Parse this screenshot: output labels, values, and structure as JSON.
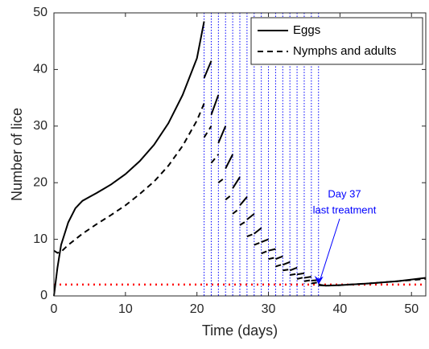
{
  "chart_data": {
    "type": "line",
    "xlabel": "Time (days)",
    "ylabel": "Number of lice",
    "xlim": [
      0,
      52
    ],
    "ylim": [
      0,
      50
    ],
    "xticks": [
      0,
      10,
      20,
      30,
      40,
      50
    ],
    "yticks": [
      0,
      10,
      20,
      30,
      40,
      50
    ],
    "legend": "upper right",
    "series": [
      {
        "name": "Eggs",
        "color": "#000000",
        "dash": "solid",
        "x": [
          0,
          0.5,
          1,
          2,
          3,
          4,
          5,
          6,
          8,
          10,
          12,
          14,
          16,
          18,
          20,
          21,
          null,
          21,
          22,
          null,
          22,
          23,
          null,
          23,
          24,
          null,
          24,
          25,
          null,
          25,
          26,
          null,
          26,
          27,
          null,
          27,
          28,
          null,
          28,
          29,
          null,
          29,
          30,
          null,
          30,
          31,
          null,
          31,
          32,
          null,
          32,
          33,
          null,
          33,
          34,
          null,
          34,
          35,
          null,
          35,
          36,
          null,
          36,
          37,
          null,
          37,
          38,
          40,
          44,
          48,
          52
        ],
        "values": [
          0,
          5,
          9,
          13,
          15.5,
          16.8,
          17.5,
          18.2,
          19.7,
          21.5,
          23.8,
          26.7,
          30.5,
          35.5,
          42,
          48.5,
          null,
          38.5,
          41.5,
          null,
          32,
          35.5,
          null,
          27,
          30,
          null,
          22.5,
          25,
          null,
          19,
          21,
          null,
          16,
          17.5,
          null,
          13.5,
          14.5,
          null,
          11,
          12,
          null,
          9.5,
          10,
          null,
          8,
          8.3,
          null,
          6.5,
          7,
          null,
          5.5,
          6,
          null,
          4.5,
          5,
          null,
          3.8,
          4,
          null,
          3.2,
          3.4,
          null,
          2.7,
          2.8,
          null,
          2,
          1.8,
          1.9,
          2.2,
          2.6,
          3.2
        ]
      },
      {
        "name": "Nymphs and adults",
        "color": "#000000",
        "dash": "dashed",
        "x": [
          0,
          0.5,
          1,
          2,
          4,
          6,
          8,
          10,
          12,
          14,
          16,
          18,
          20,
          21,
          null,
          21,
          22,
          null,
          22,
          23,
          null,
          23,
          24,
          null,
          24,
          25,
          null,
          25,
          26,
          null,
          26,
          27,
          null,
          27,
          28,
          null,
          28,
          29,
          null,
          29,
          30,
          null,
          30,
          31,
          null,
          31,
          32,
          null,
          32,
          33,
          null,
          33,
          34,
          null,
          34,
          35,
          null,
          35,
          36,
          null,
          36,
          37,
          null,
          37,
          38,
          40,
          44,
          48,
          52
        ],
        "values": [
          8,
          7.6,
          7.8,
          9,
          11,
          12.7,
          14.3,
          16,
          18,
          20.2,
          23,
          26.5,
          31,
          34,
          null,
          28,
          30,
          null,
          23.5,
          25,
          null,
          20,
          21,
          null,
          17,
          18,
          null,
          14.5,
          15.5,
          null,
          12.5,
          13.3,
          null,
          10.5,
          11,
          null,
          9,
          9.5,
          null,
          7.5,
          8,
          null,
          6.5,
          6.8,
          null,
          5.2,
          5.6,
          null,
          4.5,
          4.7,
          null,
          3.7,
          3.9,
          null,
          3,
          3.3,
          null,
          2.6,
          2.8,
          null,
          2.2,
          2.4,
          null,
          1.9,
          1.8,
          1.9,
          2.2,
          2.6,
          3
        ]
      }
    ],
    "treatment_days": [
      21,
      22,
      23,
      24,
      25,
      26,
      27,
      28,
      29,
      30,
      31,
      32,
      33,
      34,
      35,
      36,
      37
    ],
    "treatment_color": "#0000ff",
    "threshold": 2,
    "threshold_color": "#ff0000",
    "annotation": {
      "lines": [
        "Day 37",
        "last treatment"
      ],
      "x": 37,
      "y": 2,
      "color": "#0000ff"
    }
  }
}
